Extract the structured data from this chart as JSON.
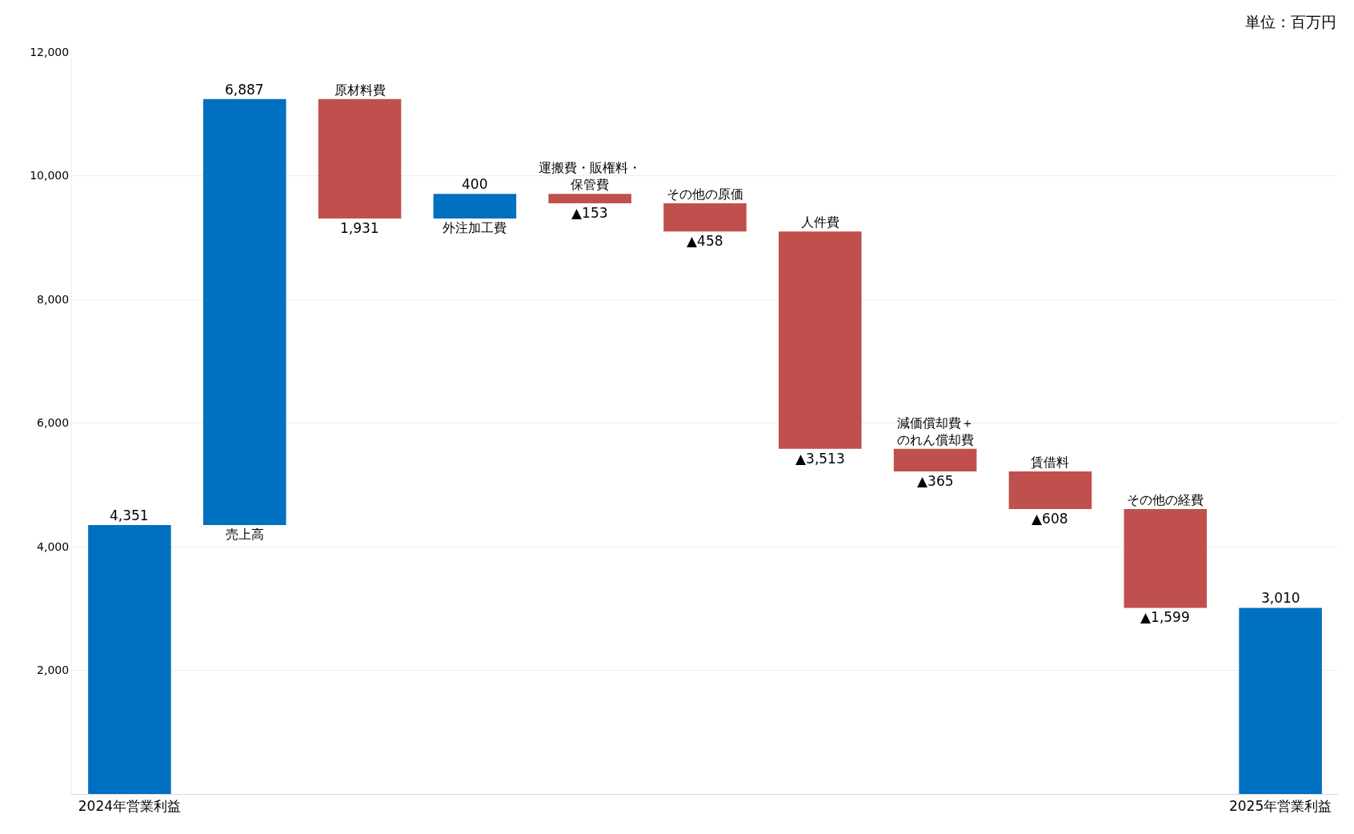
{
  "chart_data": {
    "type": "bar",
    "categories": [
      "2024年営業利益",
      "売上高",
      "原材料費",
      "外注加工費",
      "運搬費・販権料・保管費",
      "その他の原価",
      "人件費",
      "減価償却費＋のれん償却費",
      "賃借料",
      "その他の経費",
      "2025年営業利益"
    ],
    "values": [
      4351,
      6887,
      -1931,
      400,
      -153,
      -458,
      -3513,
      -365,
      -608,
      -1599,
      3010
    ],
    "base": [
      0,
      4351,
      11238,
      9307,
      9707,
      9554,
      9096,
      5583,
      5218,
      4610,
      0
    ],
    "value_labels": [
      "4,351",
      "6,887",
      "1,931",
      "400",
      "▲153",
      "▲458",
      "▲3,513",
      "▲365",
      "▲608",
      "▲1,599",
      "3,010"
    ],
    "colors": [
      "#0070c0",
      "#0070c0",
      "#c0504d",
      "#0070c0",
      "#c0504d",
      "#c0504d",
      "#c0504d",
      "#c0504d",
      "#c0504d",
      "#c0504d",
      "#0070c0"
    ],
    "ylim": [
      0,
      12000
    ],
    "yticks": [
      {
        "value": 2000,
        "label": "2,000"
      },
      {
        "value": 4000,
        "label": "4,000"
      },
      {
        "value": 6000,
        "label": "6,000"
      },
      {
        "value": 8000,
        "label": "8,000"
      },
      {
        "value": 10000,
        "label": "10,000"
      },
      {
        "value": 12000,
        "label": "12,000"
      }
    ],
    "grid": "y",
    "annotations": [
      "単位：百万円"
    ]
  }
}
